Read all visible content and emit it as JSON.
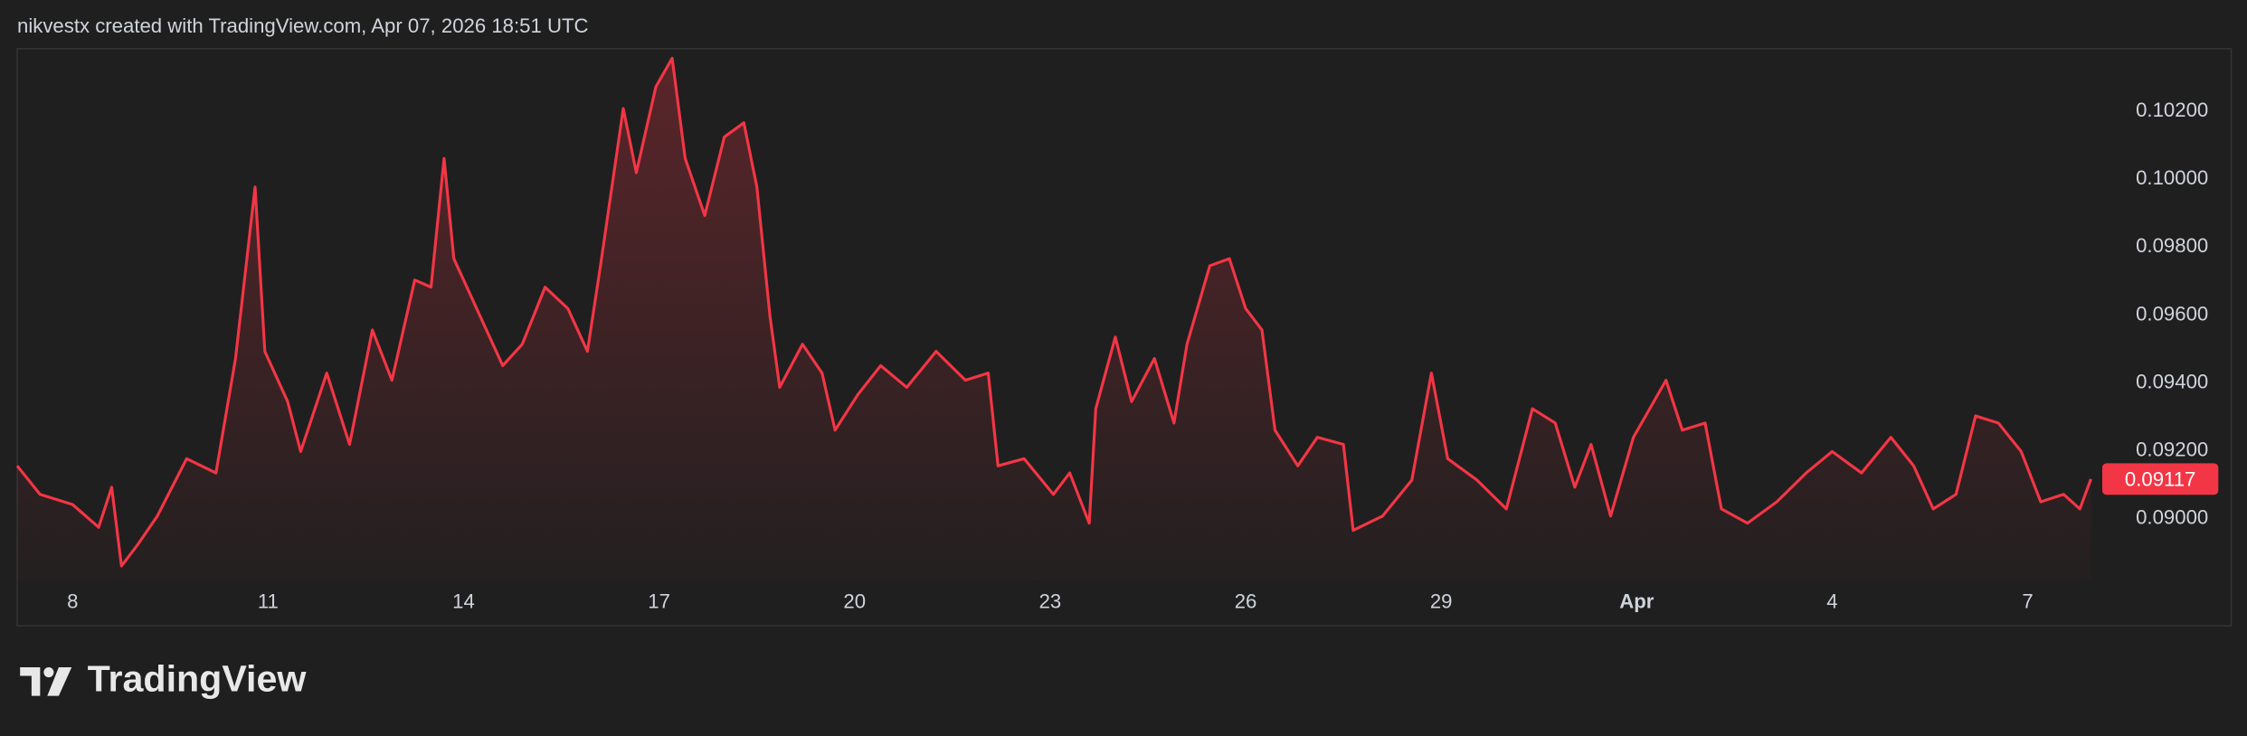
{
  "header": "nikvestx created with TradingView.com, Apr 07, 2026 18:51 UTC",
  "logo": "TradingView",
  "chart_data": {
    "type": "area",
    "color": "#f23645",
    "x": [
      7.15,
      7.5,
      8,
      8.4,
      8.6,
      8.75,
      9,
      9.3,
      9.75,
      10.2,
      10.5,
      10.8,
      10.95,
      11.3,
      11.5,
      11.9,
      12.25,
      12.6,
      12.9,
      13.25,
      13.5,
      13.7,
      13.85,
      14.25,
      14.6,
      14.9,
      15.25,
      15.6,
      15.9,
      16.1,
      16.45,
      16.65,
      16.95,
      17.2,
      17.4,
      17.7,
      18,
      18.3,
      18.5,
      18.7,
      18.85,
      19.2,
      19.5,
      19.7,
      20.05,
      20.4,
      20.8,
      21.25,
      21.7,
      22.05,
      22.2,
      22.6,
      23.05,
      23.3,
      23.6,
      23.7,
      24,
      24.25,
      24.6,
      24.9,
      25.1,
      25.45,
      25.75,
      26,
      26.25,
      26.45,
      26.8,
      27.1,
      27.5,
      27.65,
      28.1,
      28.55,
      28.85,
      29.1,
      29.55,
      30,
      30.4,
      30.75,
      31.05,
      31.3,
      31.6,
      31.95,
      32.45,
      32.7,
      33.05,
      33.3,
      33.7,
      34.15,
      34.6,
      35,
      35.45,
      35.9,
      36.25,
      36.55,
      36.9,
      37.2,
      37.55,
      37.9,
      38.2,
      38.55,
      38.8,
      38.97
    ],
    "values": [
      0.09156,
      0.09072,
      0.09042,
      0.08975,
      0.09093,
      0.08861,
      0.08924,
      0.09008,
      0.09177,
      0.09135,
      0.09472,
      0.09977,
      0.09493,
      0.09345,
      0.09198,
      0.09429,
      0.09219,
      0.09556,
      0.09408,
      0.09703,
      0.09682,
      0.10061,
      0.09766,
      0.09598,
      0.09451,
      0.09514,
      0.09682,
      0.09619,
      0.09493,
      0.09745,
      0.10208,
      0.10019,
      0.10272,
      0.10356,
      0.10061,
      0.09893,
      0.10124,
      0.10166,
      0.09977,
      0.09598,
      0.09387,
      0.09514,
      0.09429,
      0.09261,
      0.09366,
      0.09451,
      0.09387,
      0.09493,
      0.09408,
      0.09429,
      0.09156,
      0.09177,
      0.09072,
      0.09135,
      0.08987,
      0.09324,
      0.09535,
      0.09345,
      0.09472,
      0.09282,
      0.09514,
      0.09745,
      0.09766,
      0.09619,
      0.09556,
      0.09261,
      0.09156,
      0.0924,
      0.09219,
      0.08966,
      0.09008,
      0.09114,
      0.09429,
      0.09177,
      0.09114,
      0.09029,
      0.09324,
      0.09282,
      0.09093,
      0.09219,
      0.09008,
      0.0924,
      0.09408,
      0.09261,
      0.09282,
      0.09029,
      0.08987,
      0.0905,
      0.09135,
      0.09198,
      0.09135,
      0.0924,
      0.09156,
      0.09029,
      0.09072,
      0.09303,
      0.09282,
      0.09198,
      0.0905,
      0.09072,
      0.09029,
      0.09117
    ],
    "xlim": [
      7.15,
      39.1
    ],
    "xticks": [
      8,
      11,
      14,
      17,
      20,
      23,
      26,
      29,
      {
        "value": 32,
        "label": "Apr"
      },
      {
        "value": 35,
        "label": "4"
      },
      {
        "value": 38,
        "label": "7"
      }
    ],
    "ylim": [
      0.0882,
      0.1038
    ],
    "yticks": [
      {
        "value": 0.09,
        "label": "0.09000"
      },
      {
        "value": 0.092,
        "label": "0.09200"
      },
      {
        "value": 0.094,
        "label": "0.09400"
      },
      {
        "value": 0.096,
        "label": "0.09600"
      },
      {
        "value": 0.098,
        "label": "0.09800"
      },
      {
        "value": 0.1,
        "label": "0.10000"
      },
      {
        "value": 0.102,
        "label": "0.10200"
      }
    ]
  }
}
